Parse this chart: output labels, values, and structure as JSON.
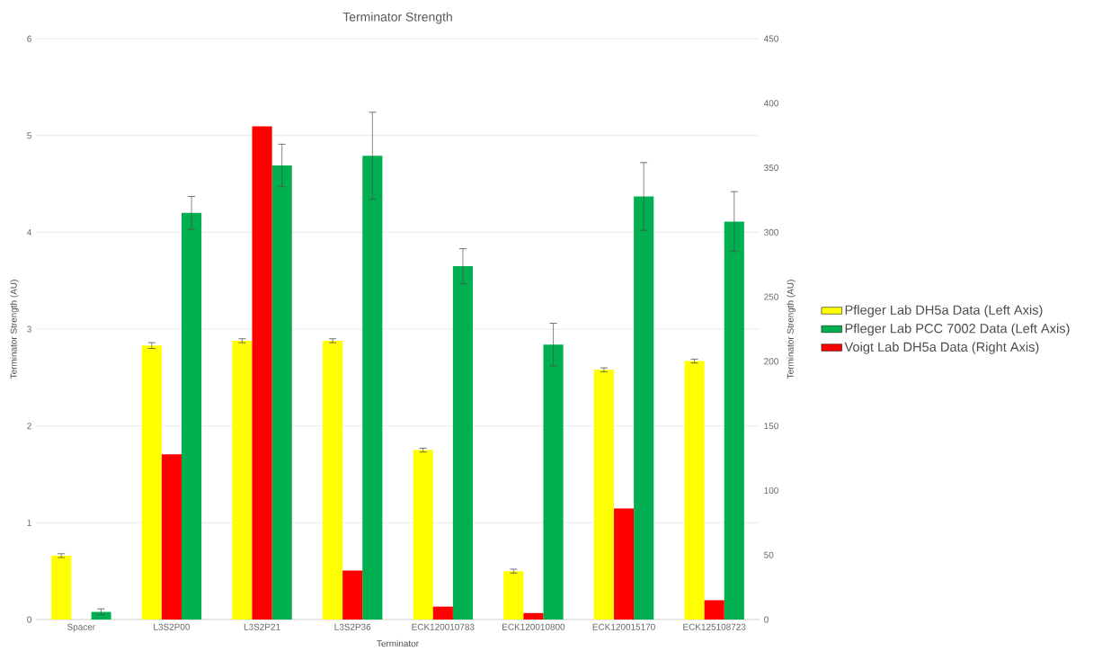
{
  "chart_data": {
    "type": "bar",
    "title": "Terminator Strength",
    "xlabel": "Terminator",
    "ylabel": "Terminator Strength (AU)",
    "y2label": "Terminator Strength (AU)",
    "categories": [
      "Spacer",
      "L3S2P00",
      "L3S2P21",
      "L3S2P36",
      "ECK120010783",
      "ECK120010800",
      "ECK120015170",
      "ECK125108723"
    ],
    "series": [
      {
        "name": "Pfleger Lab DH5a Data (Left Axis)",
        "color": "#ffff00",
        "axis": "y",
        "values": [
          0.66,
          2.83,
          2.88,
          2.88,
          1.75,
          0.5,
          2.58,
          2.67
        ],
        "errors": [
          0.02,
          0.03,
          0.02,
          0.02,
          0.02,
          0.02,
          0.02,
          0.02
        ]
      },
      {
        "name": "Pfleger Lab PCC 7002 Data (Left Axis)",
        "color": "#00b050",
        "axis": "y",
        "values": [
          0.08,
          4.2,
          4.69,
          4.79,
          3.65,
          2.84,
          4.37,
          4.11
        ],
        "errors": [
          0.03,
          0.17,
          0.22,
          0.45,
          0.18,
          0.22,
          0.35,
          0.31
        ]
      },
      {
        "name": "Voigt Lab DH5a Data (Right Axis)",
        "color": "#ff0000",
        "axis": "y2",
        "values": [
          null,
          128,
          382,
          38,
          10,
          5,
          86,
          15
        ]
      }
    ],
    "ylim": [
      0,
      6
    ],
    "yticks": [
      0,
      1,
      2,
      3,
      4,
      5,
      6
    ],
    "y2lim": [
      0,
      450
    ],
    "y2ticks": [
      0,
      50,
      100,
      150,
      200,
      250,
      300,
      350,
      400,
      450
    ],
    "grid": "y",
    "legend": "right"
  }
}
